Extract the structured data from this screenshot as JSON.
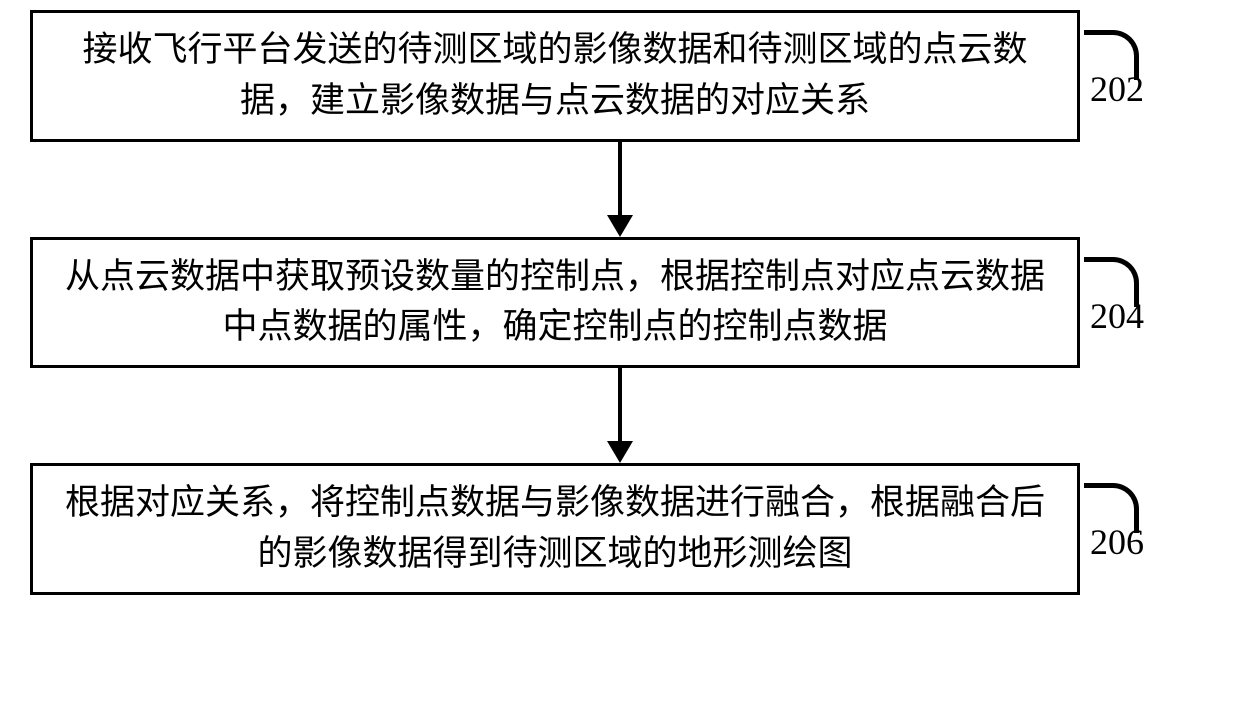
{
  "flowchart": {
    "type": "flowchart",
    "direction": "vertical",
    "background_color": "#ffffff",
    "border_color": "#000000",
    "text_color": "#000000",
    "font_size_box": 35,
    "font_size_label": 36,
    "box_border_width": 3,
    "arrow_line_width": 4,
    "steps": [
      {
        "id": "202",
        "label": "202",
        "text": "接收飞行平台发送的待测区域的影像数据和待测区域的点云数据，建立影像数据与点云数据的对应关系"
      },
      {
        "id": "204",
        "label": "204",
        "text": "从点云数据中获取预设数量的控制点，根据控制点对应点云数据中点数据的属性，确定控制点的控制点数据"
      },
      {
        "id": "206",
        "label": "206",
        "text": "根据对应关系，将控制点数据与影像数据进行融合，根据融合后的影像数据得到待测区域的地形测绘图"
      }
    ],
    "edges": [
      {
        "from": "202",
        "to": "204"
      },
      {
        "from": "204",
        "to": "206"
      }
    ]
  }
}
